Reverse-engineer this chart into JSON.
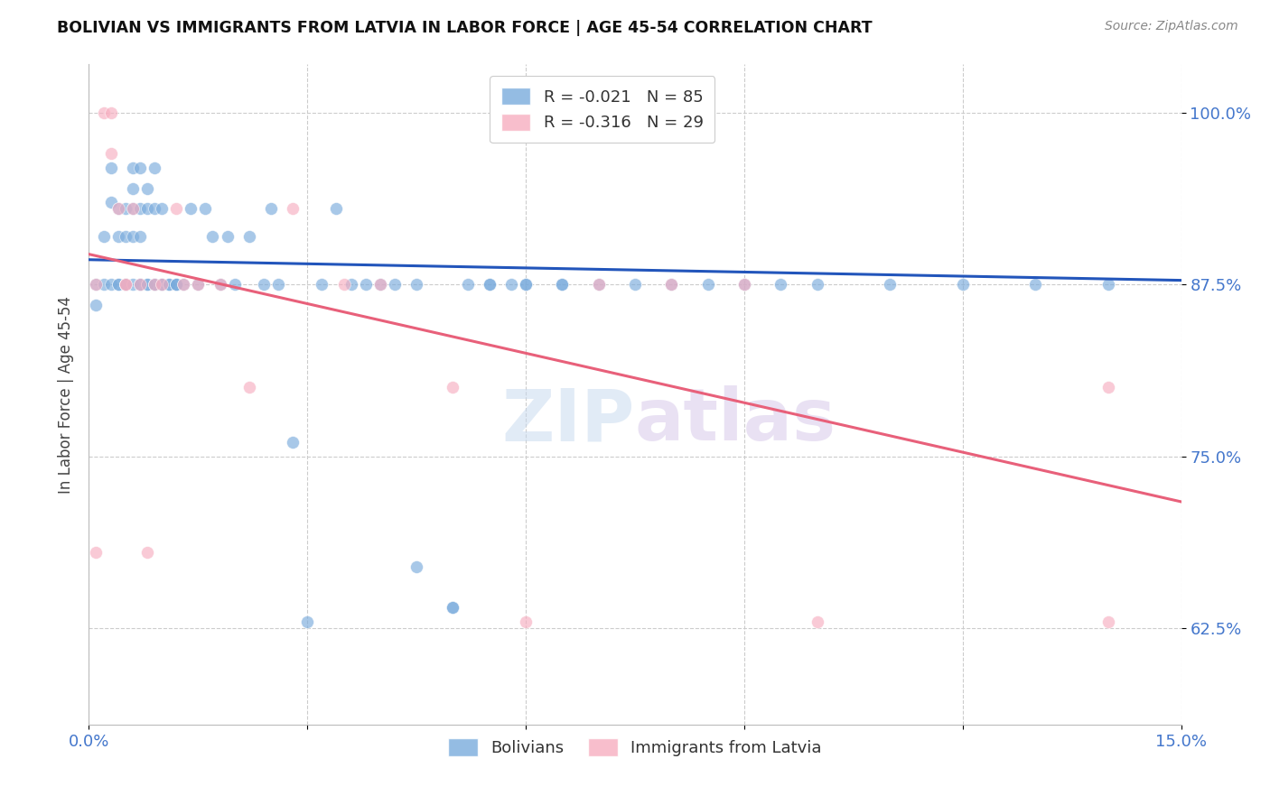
{
  "title": "BOLIVIAN VS IMMIGRANTS FROM LATVIA IN LABOR FORCE | AGE 45-54 CORRELATION CHART",
  "source": "Source: ZipAtlas.com",
  "ylabel": "In Labor Force | Age 45-54",
  "xlim": [
    0.0,
    0.15
  ],
  "ylim": [
    0.555,
    1.035
  ],
  "x_ticks": [
    0.0,
    0.03,
    0.06,
    0.09,
    0.12,
    0.15
  ],
  "x_tick_labels": [
    "0.0%",
    "",
    "",
    "",
    "",
    "15.0%"
  ],
  "y_ticks": [
    0.625,
    0.75,
    0.875,
    1.0
  ],
  "y_tick_labels": [
    "62.5%",
    "75.0%",
    "87.5%",
    "100.0%"
  ],
  "blue_color": "#7aabdc",
  "pink_color": "#f7aec0",
  "blue_line_color": "#2255bb",
  "pink_line_color": "#e8607a",
  "grid_color": "#cccccc",
  "background_color": "#ffffff",
  "label_color": "#4477cc",
  "legend_R_blue": "-0.021",
  "legend_N_blue": "85",
  "legend_R_pink": "-0.316",
  "legend_N_pink": "29",
  "watermark_zip": "ZIP",
  "watermark_atlas": "atlas",
  "bolivians_x": [
    0.001,
    0.001,
    0.002,
    0.002,
    0.003,
    0.003,
    0.003,
    0.004,
    0.004,
    0.004,
    0.004,
    0.005,
    0.005,
    0.005,
    0.005,
    0.005,
    0.006,
    0.006,
    0.006,
    0.006,
    0.006,
    0.007,
    0.007,
    0.007,
    0.007,
    0.007,
    0.008,
    0.008,
    0.008,
    0.008,
    0.009,
    0.009,
    0.009,
    0.009,
    0.01,
    0.01,
    0.01,
    0.011,
    0.011,
    0.012,
    0.012,
    0.012,
    0.013,
    0.014,
    0.015,
    0.016,
    0.017,
    0.018,
    0.019,
    0.02,
    0.022,
    0.024,
    0.025,
    0.026,
    0.028,
    0.03,
    0.032,
    0.034,
    0.036,
    0.038,
    0.04,
    0.042,
    0.045,
    0.05,
    0.052,
    0.055,
    0.058,
    0.06,
    0.065,
    0.07,
    0.075,
    0.08,
    0.085,
    0.09,
    0.095,
    0.1,
    0.11,
    0.12,
    0.13,
    0.14,
    0.045,
    0.05,
    0.055,
    0.06,
    0.065
  ],
  "bolivians_y": [
    0.875,
    0.86,
    0.91,
    0.875,
    0.935,
    0.96,
    0.875,
    0.93,
    0.91,
    0.875,
    0.875,
    0.875,
    0.93,
    0.91,
    0.875,
    0.875,
    0.96,
    0.945,
    0.93,
    0.91,
    0.875,
    0.96,
    0.93,
    0.91,
    0.875,
    0.875,
    0.945,
    0.93,
    0.875,
    0.875,
    0.96,
    0.93,
    0.875,
    0.875,
    0.93,
    0.875,
    0.875,
    0.875,
    0.875,
    0.875,
    0.875,
    0.875,
    0.875,
    0.93,
    0.875,
    0.93,
    0.91,
    0.875,
    0.91,
    0.875,
    0.91,
    0.875,
    0.93,
    0.875,
    0.76,
    0.63,
    0.875,
    0.93,
    0.875,
    0.875,
    0.875,
    0.875,
    0.875,
    0.64,
    0.875,
    0.875,
    0.875,
    0.875,
    0.875,
    0.875,
    0.875,
    0.875,
    0.875,
    0.875,
    0.875,
    0.875,
    0.875,
    0.875,
    0.875,
    0.875,
    0.67,
    0.64,
    0.875,
    0.875,
    0.875
  ],
  "latvia_x": [
    0.001,
    0.001,
    0.002,
    0.003,
    0.003,
    0.004,
    0.005,
    0.005,
    0.006,
    0.007,
    0.008,
    0.009,
    0.01,
    0.012,
    0.013,
    0.015,
    0.018,
    0.022,
    0.028,
    0.035,
    0.04,
    0.05,
    0.06,
    0.07,
    0.08,
    0.09,
    0.1,
    0.14,
    0.14
  ],
  "latvia_y": [
    0.875,
    0.68,
    1.0,
    0.97,
    1.0,
    0.93,
    0.875,
    0.875,
    0.93,
    0.875,
    0.68,
    0.875,
    0.875,
    0.93,
    0.875,
    0.875,
    0.875,
    0.8,
    0.93,
    0.875,
    0.875,
    0.8,
    0.63,
    0.875,
    0.875,
    0.875,
    0.63,
    0.8,
    0.63
  ]
}
